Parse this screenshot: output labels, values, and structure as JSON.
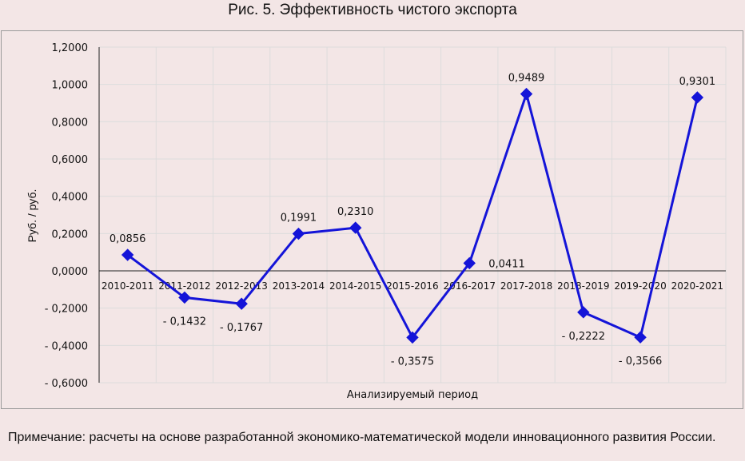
{
  "chart_data": {
    "type": "line",
    "title": "Рис. 5. Эффективность чистого экспорта",
    "xlabel": "Анализируемый период",
    "ylabel": "Руб. / руб.",
    "ylim": [
      -0.6,
      1.2
    ],
    "yticks": [
      "1,2000",
      "1,0000",
      "0,8000",
      "0,6000",
      "0,4000",
      "0,2000",
      "0,0000",
      "- 0,2000",
      "- 0,4000",
      "- 0,6000"
    ],
    "categories": [
      "2010-2011",
      "2011-2012",
      "2012-2013",
      "2013-2014",
      "2014-2015",
      "2015-2016",
      "2016-2017",
      "2017-2018",
      "2018-2019",
      "2019-2020",
      "2020-2021"
    ],
    "series": [
      {
        "values": [
          0.0856,
          -0.1432,
          -0.1767,
          0.1991,
          0.231,
          -0.3575,
          0.0411,
          0.9489,
          -0.2222,
          -0.3566,
          0.9301
        ],
        "data_labels": [
          "0,0856",
          "- 0,1432",
          "- 0,1767",
          "0,1991",
          "0,2310",
          "- 0,3575",
          "0,0411",
          "0,9489",
          "- 0,2222",
          "- 0,3566",
          "0,9301"
        ],
        "color": "#1414d8",
        "marker": "diamond"
      }
    ],
    "grid": true,
    "legend": "none"
  },
  "note": "Примечание: расчеты на основе разработанной экономико-математической модели инновационного развития России."
}
